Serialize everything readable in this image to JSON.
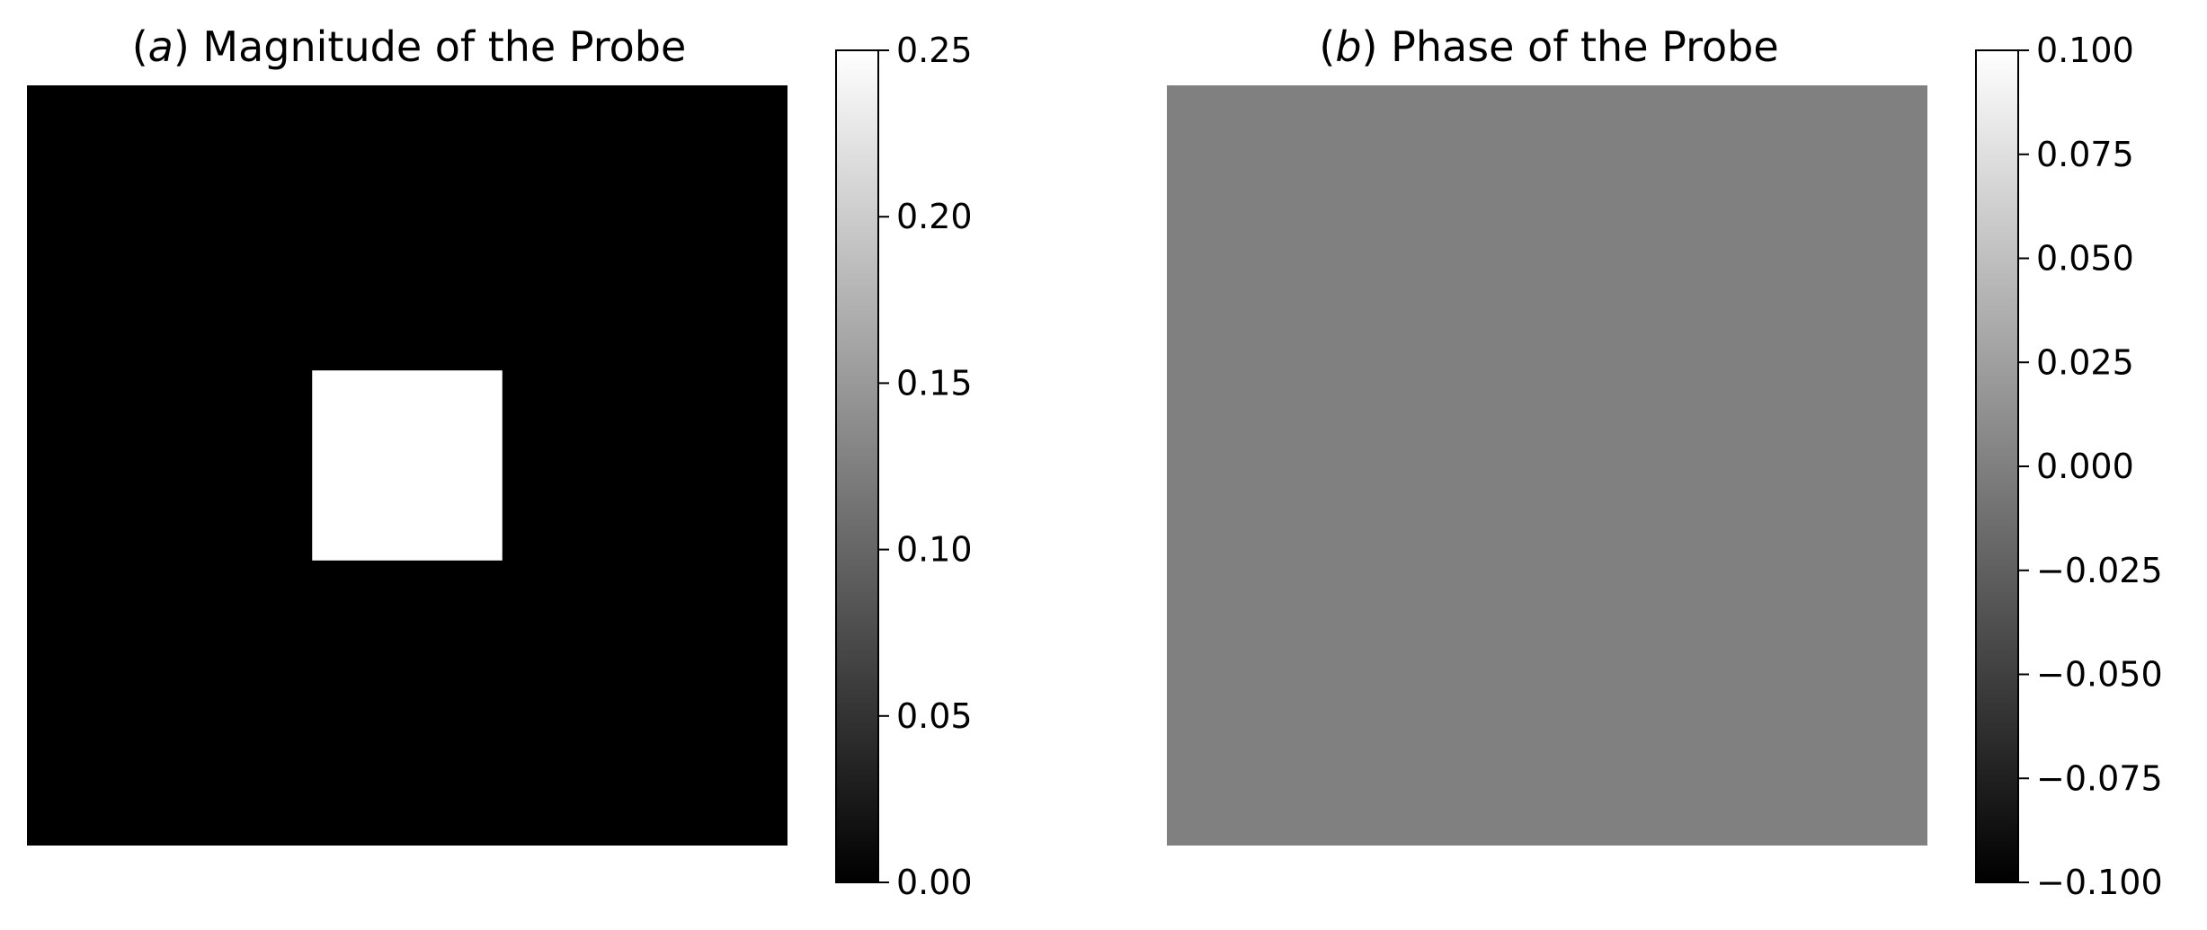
{
  "chart_data": [
    {
      "type": "heatmap",
      "title_prefix": "a",
      "title": "Magnitude of the Probe",
      "colormap": "gray",
      "background_value": 0.0,
      "region": {
        "value": 0.25,
        "x_fraction": [
          0.375,
          0.625
        ],
        "y_fraction": [
          0.375,
          0.625
        ]
      },
      "colorbar": {
        "vmin": 0.0,
        "vmax": 0.25,
        "ticks": [
          0.0,
          0.05,
          0.1,
          0.15,
          0.2,
          0.25
        ],
        "tick_labels": [
          "0.00",
          "0.05",
          "0.10",
          "0.15",
          "0.20",
          "0.25"
        ]
      },
      "axes_visible": false
    },
    {
      "type": "heatmap",
      "title_prefix": "b",
      "title": "Phase of the Probe",
      "colormap": "gray",
      "background_value": 0.0,
      "colorbar": {
        "vmin": -0.1,
        "vmax": 0.1,
        "ticks": [
          -0.1,
          -0.075,
          -0.05,
          -0.025,
          0.0,
          0.025,
          0.05,
          0.075,
          0.1
        ],
        "tick_labels": [
          "−0.100",
          "−0.075",
          "−0.050",
          "−0.025",
          "0.000",
          "0.025",
          "0.050",
          "0.075",
          "0.100"
        ]
      },
      "axes_visible": false
    }
  ]
}
